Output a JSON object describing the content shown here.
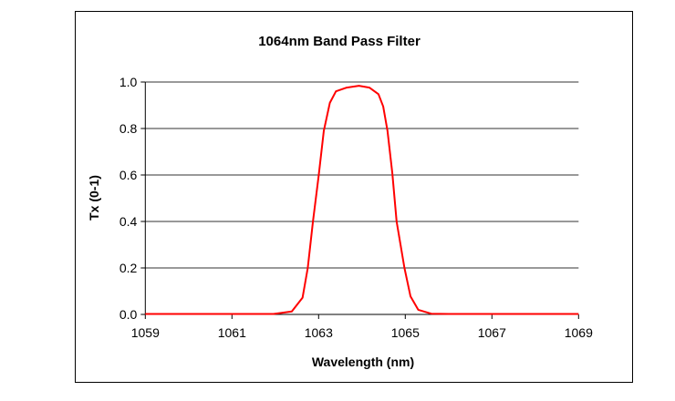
{
  "chart_data": {
    "type": "line",
    "title": "1064nm Band Pass Filter",
    "xlabel": "Wavelength (nm)",
    "ylabel": "Tx (0-1)",
    "xlim": [
      1059,
      1069
    ],
    "ylim": [
      0,
      1.0
    ],
    "xticks": [
      "1059",
      "1061",
      "1063",
      "1065",
      "1067",
      "1069"
    ],
    "yticks": [
      "0.0",
      "0.2",
      "0.4",
      "0.6",
      "0.8",
      "1.0"
    ],
    "grid": "horizontal",
    "legend": "none",
    "series": [
      {
        "color": "#ff0000",
        "x": [
          1059,
          1060,
          1061,
          1061.96,
          1062.38,
          1062.63,
          1062.75,
          1062.87,
          1063.0,
          1063.12,
          1063.26,
          1063.4,
          1063.65,
          1063.93,
          1064.17,
          1064.38,
          1064.49,
          1064.59,
          1064.7,
          1064.8,
          1064.98,
          1065.12,
          1065.3,
          1065.6,
          1066,
          1067,
          1068,
          1069
        ],
        "y": [
          0.002,
          0.002,
          0.002,
          0.002,
          0.013,
          0.072,
          0.2,
          0.4,
          0.595,
          0.79,
          0.91,
          0.96,
          0.976,
          0.984,
          0.976,
          0.948,
          0.895,
          0.79,
          0.608,
          0.4,
          0.2,
          0.078,
          0.02,
          0.003,
          0.002,
          0.002,
          0.002,
          0.002
        ]
      }
    ]
  }
}
